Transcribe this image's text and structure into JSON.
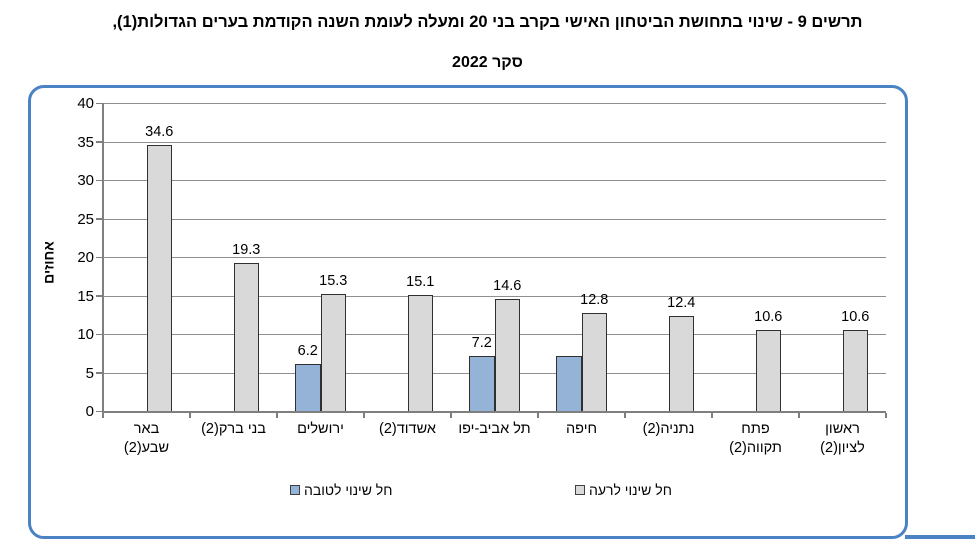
{
  "title": {
    "line1": "תרשים 9 - שינוי בתחושת הביטחון האישי בקרב בני 20 ומעלה לעומת השנה הקודמת בערים הגדולות(1),",
    "line2": "סקר 2022"
  },
  "chart_data": {
    "type": "bar",
    "direction": "rtl",
    "title": "תרשים 9 - שינוי בתחושת הביטחון האישי בקרב בני 20 ומעלה לעומת השנה הקודמת בערים הגדולות(1), סקר 2022",
    "ylabel": "אחוזים",
    "xlabel": "",
    "ylim": [
      0,
      40
    ],
    "ytick_step": 5,
    "grid": true,
    "legend_position": "bottom",
    "categories": [
      "באר\nשבע(2)",
      "בני ברק(2)",
      "ירושלים",
      "אשדוד(2)",
      "תל אביב-יפו",
      "חיפה",
      "נתניה(2)",
      "פתח\nתקווה(2)",
      "ראשון\nלציון(2)"
    ],
    "series": [
      {
        "key": "good",
        "name": "חל שינוי לטובה",
        "color": "#95B3D7",
        "values": [
          null,
          null,
          6.2,
          null,
          7.2,
          7.2,
          null,
          null,
          null
        ],
        "labels": [
          "",
          "",
          "6.2",
          "",
          "7.2",
          "",
          "",
          "",
          ""
        ]
      },
      {
        "key": "bad",
        "name": "חל שינוי לרעה",
        "color": "#D9D9D9",
        "values": [
          34.6,
          19.3,
          15.3,
          15.1,
          14.6,
          12.8,
          12.4,
          10.6,
          10.6
        ],
        "labels": [
          "34.6",
          "19.3",
          "15.3",
          "15.1",
          "14.6",
          "12.8",
          "12.4",
          "10.6",
          "10.6"
        ]
      }
    ]
  },
  "colors": {
    "bar_good": "#95B3D7",
    "bar_bad": "#D9D9D9",
    "bar_border": "#303030",
    "panel_border": "#4A82C4",
    "gridline": "#8F8F8F",
    "axis": "#7F7F7F",
    "text": "#000000"
  }
}
